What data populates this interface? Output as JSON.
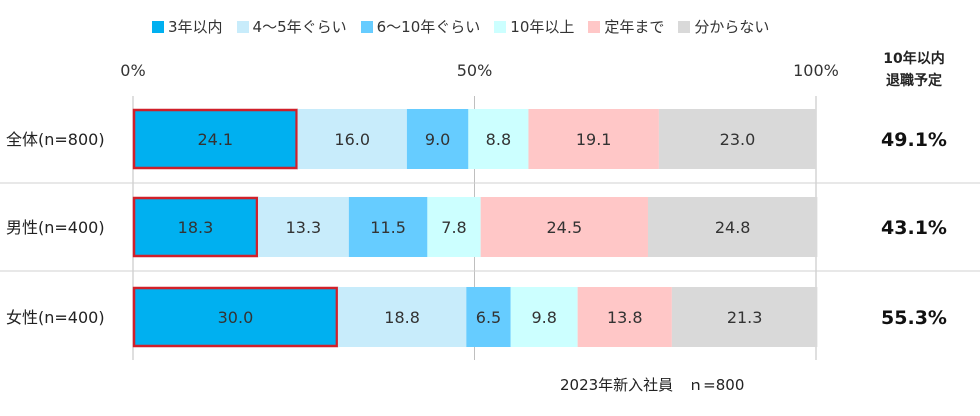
{
  "chart_data": {
    "type": "bar",
    "orientation": "horizontal-stacked-100",
    "categories": [
      "全体(n=800)",
      "男性(n=400)",
      "女性(n=400)"
    ],
    "series": [
      {
        "name": "3年以内",
        "color": "#00b0f0",
        "values": [
          24.1,
          18.3,
          30.0
        ]
      },
      {
        "name": "4〜5年ぐらい",
        "color": "#c8ecfb",
        "values": [
          16.0,
          13.3,
          18.8
        ]
      },
      {
        "name": "6〜10年ぐらい",
        "color": "#66ccff",
        "values": [
          9.0,
          11.5,
          6.5
        ]
      },
      {
        "name": "10年以上",
        "color": "#ccffff",
        "values": [
          8.8,
          7.8,
          9.8
        ]
      },
      {
        "name": "定年まで",
        "color": "#ffc7c7",
        "values": [
          19.1,
          24.5,
          13.8
        ]
      },
      {
        "name": "分からない",
        "color": "#d9d9d9",
        "values": [
          23.0,
          24.8,
          21.3
        ]
      }
    ],
    "value_labels": [
      [
        "24.1",
        "16.0",
        "9.0",
        "8.8",
        "19.1",
        "23.0"
      ],
      [
        "18.3",
        "13.3",
        "11.5",
        "7.8",
        "24.5",
        "24.8"
      ],
      [
        "30.0",
        "18.8",
        "6.5",
        "9.8",
        "13.8",
        "21.3"
      ]
    ],
    "xticks": [
      "0%",
      "50%",
      "100%"
    ],
    "xlim": [
      0,
      100
    ],
    "highlight_series": "3年以内",
    "highlight_color": "#d0202a",
    "side_header": [
      "10年以内",
      "退職予定"
    ],
    "side_values": [
      "49.1%",
      "43.1%",
      "55.3%"
    ],
    "footnote": "2023年新入社員　ｎ=800",
    "legend_position": "top"
  }
}
